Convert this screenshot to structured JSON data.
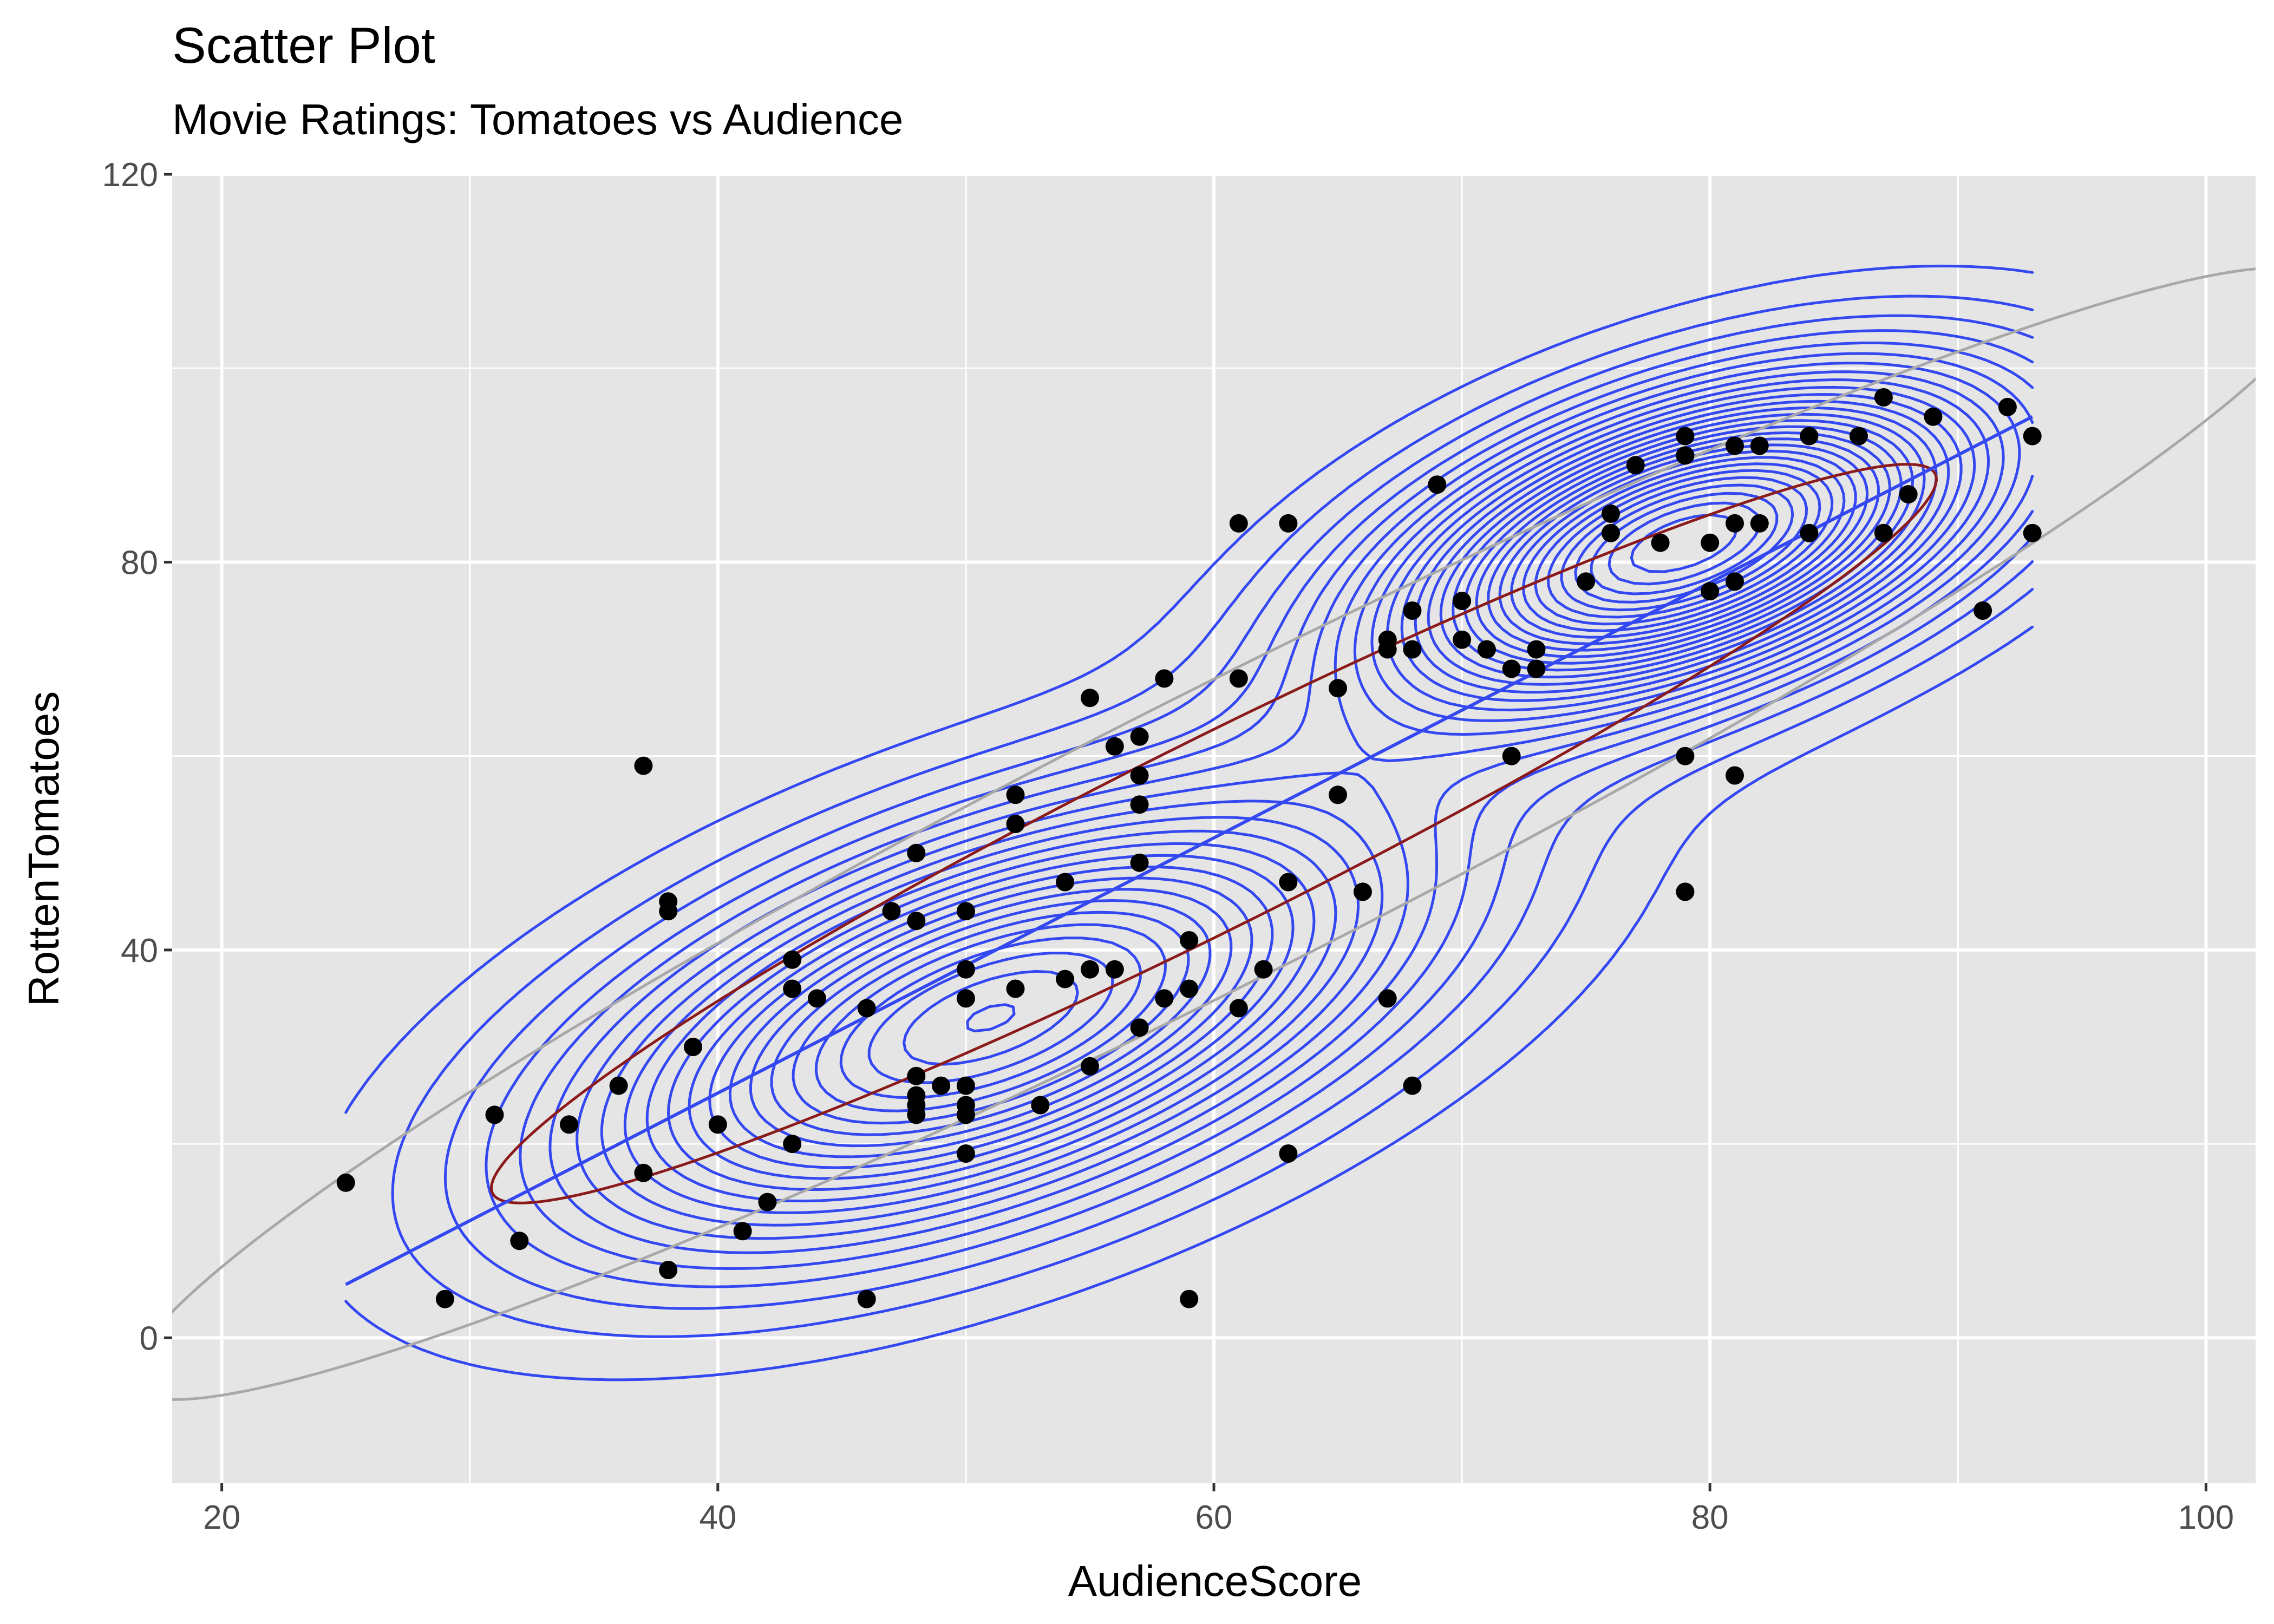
{
  "chart_data": {
    "type": "scatter",
    "title": "Scatter Plot",
    "subtitle": "Movie Ratings: Tomatoes vs Audience",
    "xlabel": "AudienceScore",
    "ylabel": "RottenTomatoes",
    "xlim": [
      18,
      102
    ],
    "ylim": [
      -15,
      120
    ],
    "x_ticks": [
      20,
      40,
      60,
      80,
      100
    ],
    "y_ticks": [
      0,
      40,
      80,
      120
    ],
    "grid": true,
    "legend": "none",
    "colors": {
      "panel": "#e5e5e5",
      "grid": "#ffffff",
      "points": "#000000",
      "density": "#3448f2",
      "fit": "#3448f2",
      "ellipse_outer": "#a8a8a8",
      "ellipse_inner": "#8b1a1a"
    },
    "points": [
      [
        25,
        16
      ],
      [
        29,
        4
      ],
      [
        31,
        23
      ],
      [
        32,
        10
      ],
      [
        34,
        22
      ],
      [
        36,
        26
      ],
      [
        37,
        17
      ],
      [
        37,
        59
      ],
      [
        38,
        45
      ],
      [
        38,
        44
      ],
      [
        38,
        7
      ],
      [
        39,
        30
      ],
      [
        40,
        22
      ],
      [
        41,
        11
      ],
      [
        42,
        14
      ],
      [
        43,
        39
      ],
      [
        43,
        36
      ],
      [
        43,
        20
      ],
      [
        44,
        35
      ],
      [
        46,
        34
      ],
      [
        46,
        4
      ],
      [
        47,
        44
      ],
      [
        48,
        50
      ],
      [
        48,
        43
      ],
      [
        48,
        27
      ],
      [
        48,
        25
      ],
      [
        48,
        24
      ],
      [
        48,
        23
      ],
      [
        49,
        26
      ],
      [
        50,
        44
      ],
      [
        50,
        38
      ],
      [
        50,
        35
      ],
      [
        50,
        26
      ],
      [
        50,
        24
      ],
      [
        50,
        23
      ],
      [
        50,
        19
      ],
      [
        52,
        56
      ],
      [
        52,
        53
      ],
      [
        52,
        36
      ],
      [
        53,
        24
      ],
      [
        54,
        47
      ],
      [
        54,
        37
      ],
      [
        55,
        66
      ],
      [
        55,
        38
      ],
      [
        55,
        28
      ],
      [
        56,
        61
      ],
      [
        56,
        38
      ],
      [
        57,
        62
      ],
      [
        57,
        58
      ],
      [
        57,
        55
      ],
      [
        57,
        49
      ],
      [
        57,
        32
      ],
      [
        58,
        68
      ],
      [
        58,
        35
      ],
      [
        59,
        41
      ],
      [
        59,
        36
      ],
      [
        59,
        4
      ],
      [
        61,
        84
      ],
      [
        61,
        68
      ],
      [
        61,
        34
      ],
      [
        62,
        38
      ],
      [
        63,
        84
      ],
      [
        63,
        47
      ],
      [
        63,
        19
      ],
      [
        65,
        67
      ],
      [
        65,
        56
      ],
      [
        66,
        46
      ],
      [
        67,
        72
      ],
      [
        67,
        71
      ],
      [
        67,
        35
      ],
      [
        68,
        75
      ],
      [
        68,
        71
      ],
      [
        68,
        26
      ],
      [
        69,
        88
      ],
      [
        70,
        76
      ],
      [
        70,
        72
      ],
      [
        71,
        71
      ],
      [
        72,
        69
      ],
      [
        72,
        60
      ],
      [
        73,
        71
      ],
      [
        73,
        69
      ],
      [
        75,
        78
      ],
      [
        76,
        85
      ],
      [
        76,
        83
      ],
      [
        77,
        90
      ],
      [
        78,
        82
      ],
      [
        79,
        93
      ],
      [
        79,
        91
      ],
      [
        79,
        60
      ],
      [
        79,
        46
      ],
      [
        80,
        82
      ],
      [
        80,
        77
      ],
      [
        81,
        92
      ],
      [
        81,
        84
      ],
      [
        81,
        78
      ],
      [
        81,
        58
      ],
      [
        82,
        92
      ],
      [
        82,
        84
      ],
      [
        84,
        93
      ],
      [
        84,
        83
      ],
      [
        86,
        93
      ],
      [
        87,
        97
      ],
      [
        87,
        83
      ],
      [
        88,
        87
      ],
      [
        89,
        95
      ],
      [
        91,
        75
      ],
      [
        92,
        96
      ],
      [
        93,
        93
      ],
      [
        93,
        83
      ]
    ],
    "fit_line": {
      "x": [
        25,
        93
      ],
      "y": [
        5.5,
        95
      ]
    },
    "ellipse_outer": {
      "center": [
        60.5,
        52
      ],
      "major_axis_angle_deg": 53.2,
      "semi_major": 72.5,
      "semi_minor": 10.1
    },
    "ellipse_inner": {
      "center": [
        60,
        52
      ],
      "major_axis_angle_deg": 52.9,
      "semi_major": 47.5,
      "semi_minor": 6.6
    },
    "density_x_range": [
      25,
      93
    ],
    "density_components": [
      {
        "weight": 0.58,
        "mean": [
          51,
          33
        ],
        "sd": [
          11,
          15
        ],
        "rho": 0.55
      },
      {
        "weight": 0.42,
        "mean": [
          79,
          82
        ],
        "sd": [
          8,
          11
        ],
        "rho": 0.5
      }
    ],
    "density_levels": 28
  }
}
